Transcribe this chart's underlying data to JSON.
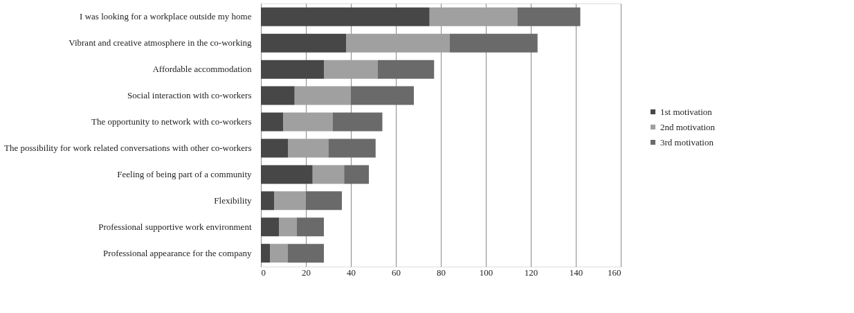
{
  "chart_data": {
    "type": "bar",
    "orientation": "horizontal",
    "stacked": true,
    "categories": [
      "I was looking for a workplace outside my home",
      "Vibrant and creative atmosphere in the co-working",
      "Affordable accommodation",
      "Social interaction with co-workers",
      "The opportunity to network with co-workers",
      "The possibility for work related conversations with other co-workers",
      "Feeling of being part of a community",
      "Flexibility",
      "Professional supportive work environment",
      "Professional appearance for the company"
    ],
    "series": [
      {
        "name": "1st motivation",
        "color": "#474747",
        "values": [
          75,
          38,
          28,
          15,
          10,
          12,
          23,
          6,
          8,
          4
        ]
      },
      {
        "name": "2nd motivation",
        "color": "#a0a0a0",
        "values": [
          39,
          46,
          24,
          25,
          22,
          18,
          14,
          14,
          8,
          8
        ]
      },
      {
        "name": "3rd motivation",
        "color": "#6a6a6a",
        "values": [
          28,
          39,
          25,
          28,
          22,
          21,
          11,
          16,
          12,
          16
        ]
      }
    ],
    "xlim": [
      0,
      160
    ],
    "xticks": [
      0,
      20,
      40,
      60,
      80,
      100,
      120,
      140,
      160
    ],
    "grid": "x",
    "legend": "right"
  }
}
